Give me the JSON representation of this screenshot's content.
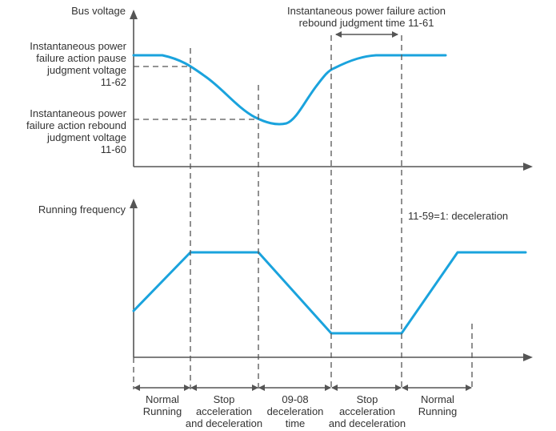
{
  "diagram": {
    "title_lines": [
      "Instantaneous power failure action",
      "rebound judgment time 11-61"
    ],
    "top_axis_label": "Bus voltage",
    "pause_voltage_lines": [
      "Instantaneous power",
      "failure action pause",
      "judgment voltage",
      "11-62"
    ],
    "rebound_voltage_lines": [
      "Instantaneous power",
      "failure action rebound",
      "judgment voltage",
      "11-60"
    ],
    "bottom_axis_label": "Running frequency",
    "mode_note": "11-59=1: deceleration",
    "phases": [
      {
        "lines": [
          "Normal",
          "Running"
        ]
      },
      {
        "lines": [
          "Stop",
          "acceleration",
          "and deceleration"
        ]
      },
      {
        "lines": [
          "09-08",
          "deceleration",
          "time"
        ]
      },
      {
        "lines": [
          "Stop",
          "acceleration",
          "and deceleration"
        ]
      },
      {
        "lines": [
          "Normal",
          "Running"
        ]
      }
    ],
    "colors": {
      "curve": "#1aa3dd",
      "axis": "#555555",
      "text": "#333333"
    }
  }
}
